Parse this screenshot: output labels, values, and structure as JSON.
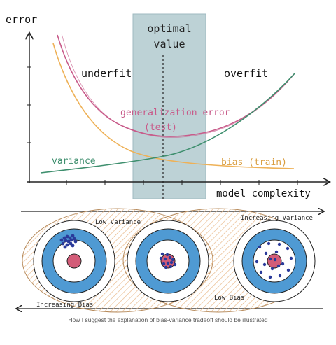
{
  "top": {
    "y_axis_label": "error",
    "x_axis_label": "model complexity",
    "optimal_label": [
      "optimal",
      "value"
    ],
    "region_underfit": "underfit",
    "region_overfit": "overfit",
    "curve_generalization": [
      "generalization error",
      "(test)"
    ],
    "curve_variance": "variance",
    "curve_bias": "bias (train)",
    "colors": {
      "generalization": "#c85b8a",
      "variance": "#3e8f6e",
      "bias": "#eeb157",
      "optimal_band": "#a7c3c9",
      "axis": "#222222"
    }
  },
  "bottom": {
    "low_variance": "Low Variance",
    "increasing_variance": "Increasing Variance",
    "low_bias": "Low Bias",
    "increasing_bias": "Increasing Bias",
    "colors": {
      "ring_blue": "#4f9ad3",
      "bullseye": "#d35c78",
      "dot": "#2a3a9a",
      "hatch": "#e9b98a"
    }
  },
  "caption": "How I suggest the explanation of bias-variance tradeoff should be illustrated"
}
